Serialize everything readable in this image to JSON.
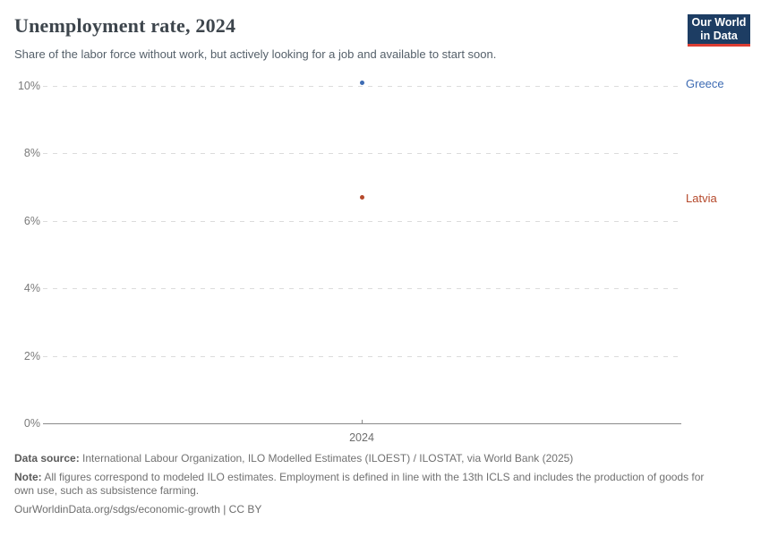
{
  "header": {
    "title": "Unemployment rate, 2024",
    "subtitle": "Share of the labor force without work, but actively looking for a job and available to start soon.",
    "logo_line1": "Our World",
    "logo_line2": "in Data",
    "logo_bg_color": "#1d3d63",
    "logo_accent_color": "#dc3d33"
  },
  "chart_data": {
    "type": "scatter",
    "x": [
      2024
    ],
    "series": [
      {
        "name": "Greece",
        "values": [
          10.1
        ],
        "color": "#3d6bb3"
      },
      {
        "name": "Latvia",
        "values": [
          6.7
        ],
        "color": "#b5492b"
      }
    ],
    "title": "Unemployment rate, 2024",
    "xlabel": "",
    "ylabel": "",
    "ylim": [
      0,
      10
    ],
    "yticks": [
      "0%",
      "2%",
      "4%",
      "6%",
      "8%",
      "10%"
    ],
    "ytick_values": [
      0,
      2,
      4,
      6,
      8,
      10
    ],
    "xticks": [
      "2024"
    ],
    "grid": "horizontal-dashed",
    "legend_position": "right-edge-entity-labels"
  },
  "footer": {
    "datasource_label": "Data source:",
    "datasource_text": "International Labour Organization, ILO Modelled Estimates (ILOEST) / ILOSTAT, via World Bank (2025)",
    "note_label": "Note:",
    "note_text": "All figures correspond to modeled ILO estimates. Employment is defined in line with the 13th ICLS and includes the production of goods for own use, such as subsistence farming.",
    "license_line": "OurWorldinData.org/sdgs/economic-growth | CC BY"
  }
}
